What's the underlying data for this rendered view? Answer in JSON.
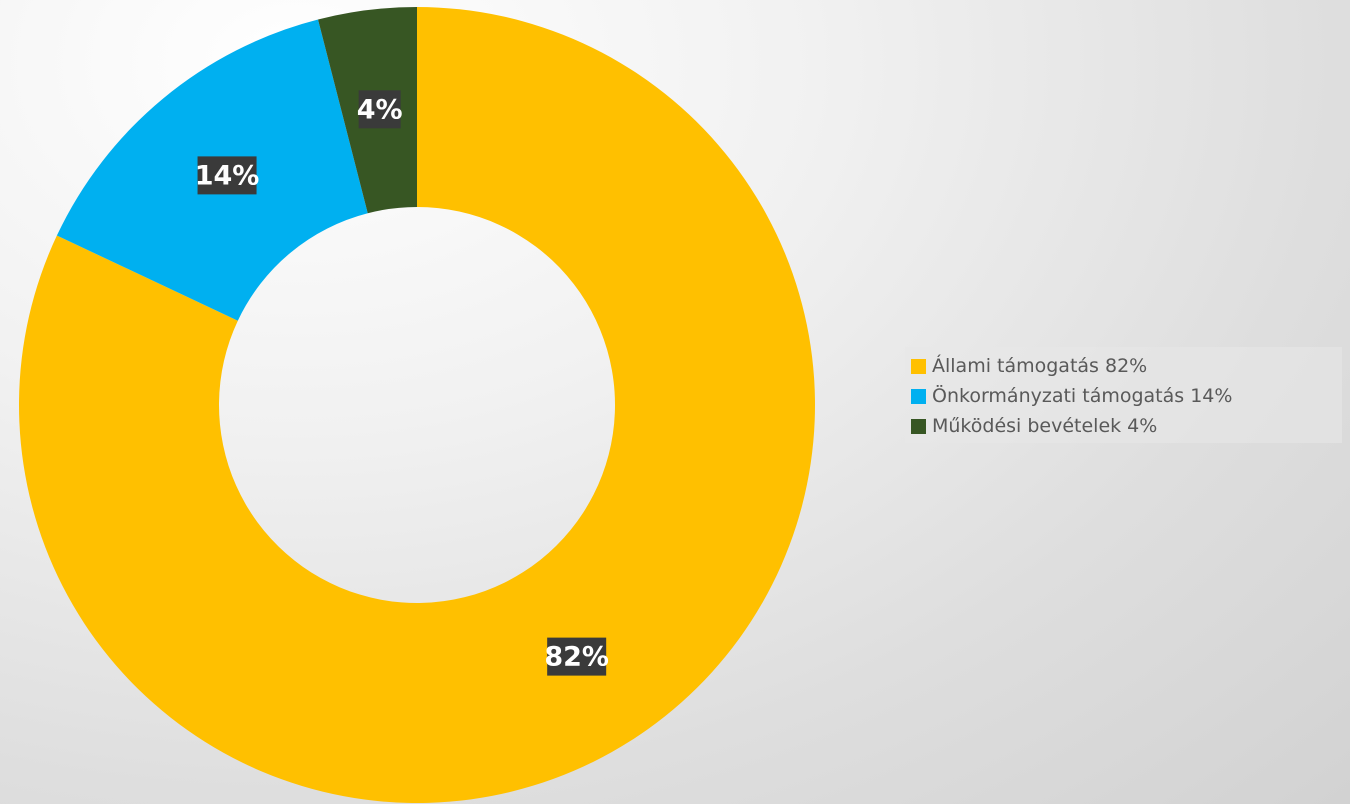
{
  "chart_data": {
    "type": "pie",
    "variant": "donut",
    "title": "",
    "categories": [
      "Állami támogatás",
      "Önkormányzati támogatás",
      "Működési bevételek"
    ],
    "values": [
      82,
      14,
      4
    ],
    "unit": "%",
    "data_labels": [
      "82%",
      "14%",
      "4%"
    ],
    "legend": {
      "placement": "right",
      "entries": [
        "Állami támogatás 82%",
        "Önkormányzati támogatás 14%",
        "Működési bevételek 4%"
      ]
    },
    "colors": [
      "#FFC000",
      "#00B0F0",
      "#375623"
    ]
  }
}
